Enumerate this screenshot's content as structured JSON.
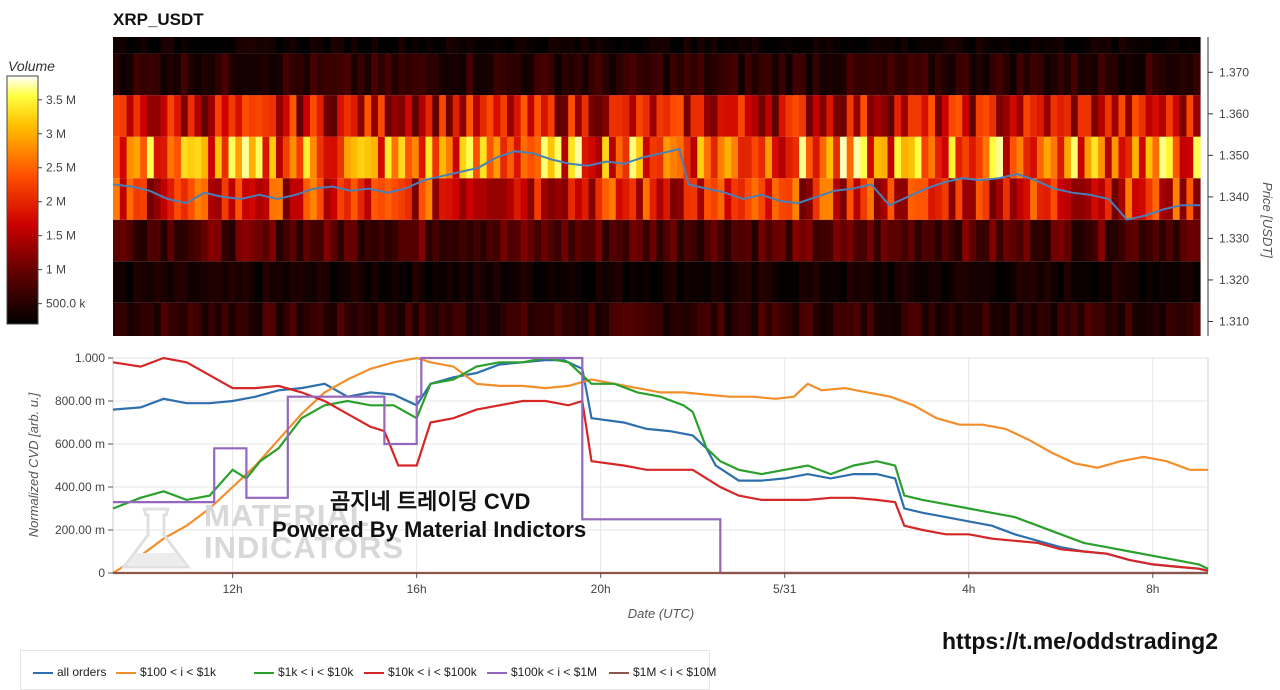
{
  "chart_title": "XRP_USDT",
  "colorbar": {
    "title": "Volume",
    "ticks": [
      "3.5 M",
      "3 M",
      "2.5 M",
      "2 M",
      "1.5 M",
      "1 M",
      "500.0 k"
    ],
    "tick_values": [
      3.5,
      3.0,
      2.5,
      2.0,
      1.5,
      1.0,
      0.5
    ],
    "range_m": [
      0.2,
      3.85
    ]
  },
  "overlay_text": {
    "line1": "곰지네 트레이딩 CVD",
    "line2": "Powered By Material Indictors"
  },
  "logo": {
    "text_line1": "MATERIAL",
    "text_line2": "INDICATORS",
    "icon": "flask-logo-icon"
  },
  "url_text": "https://t.me/oddstrading2",
  "chart_data": [
    {
      "type": "heatmap",
      "title": "XRP_USDT",
      "ylabel": "Price [USDT]",
      "yticks": [
        "1.370",
        "1.360",
        "1.350",
        "1.340",
        "1.330",
        "1.320",
        "1.310"
      ],
      "ytick_values": [
        1.37,
        1.36,
        1.35,
        1.34,
        1.33,
        1.32,
        1.31
      ],
      "ylim": [
        1.3065,
        1.3785
      ],
      "price_bands": [
        {
          "low": 1.3065,
          "high": 1.3145,
          "level_m": 0.6
        },
        {
          "low": 1.3145,
          "high": 1.3245,
          "level_m": 0.35
        },
        {
          "low": 1.3245,
          "high": 1.3345,
          "level_m": 0.85
        },
        {
          "low": 1.3345,
          "high": 1.3445,
          "level_m": 1.9
        },
        {
          "low": 1.3445,
          "high": 1.3545,
          "level_m": 2.6
        },
        {
          "low": 1.3545,
          "high": 1.3645,
          "level_m": 1.7
        },
        {
          "low": 1.3645,
          "high": 1.3745,
          "level_m": 0.55
        },
        {
          "low": 1.3745,
          "high": 1.3785,
          "level_m": 0.3
        }
      ],
      "price_line": {
        "color": "#4a7fb8",
        "x_hours": [
          9.4,
          9.8,
          10.2,
          10.6,
          11.0,
          11.4,
          11.8,
          12.2,
          12.6,
          13.0,
          13.4,
          13.8,
          14.2,
          14.6,
          15.0,
          15.4,
          15.8,
          16.2,
          16.6,
          17.0,
          17.4,
          17.8,
          18.2,
          18.6,
          19.0,
          19.4,
          19.8,
          20.2,
          20.6,
          21.0,
          21.4,
          21.8,
          22.0,
          22.4,
          22.8,
          23.2,
          23.6,
          24.0,
          24.4,
          24.8,
          25.2,
          25.6,
          26.0,
          26.4,
          26.8,
          27.2,
          27.6,
          28.0,
          28.4,
          28.8,
          29.2,
          29.6,
          30.0,
          30.4,
          30.8,
          31.2,
          31.6,
          32.0,
          32.4,
          32.8,
          33.2
        ],
        "price": [
          1.343,
          1.3425,
          1.3415,
          1.3395,
          1.3385,
          1.341,
          1.34,
          1.3395,
          1.3405,
          1.3395,
          1.3405,
          1.342,
          1.3425,
          1.3415,
          1.342,
          1.341,
          1.342,
          1.344,
          1.345,
          1.346,
          1.347,
          1.3495,
          1.351,
          1.3505,
          1.349,
          1.348,
          1.3475,
          1.3485,
          1.348,
          1.3495,
          1.3505,
          1.3515,
          1.343,
          1.342,
          1.341,
          1.3395,
          1.3405,
          1.339,
          1.3385,
          1.34,
          1.3415,
          1.342,
          1.343,
          1.338,
          1.34,
          1.342,
          1.3435,
          1.3445,
          1.344,
          1.3445,
          1.3455,
          1.344,
          1.342,
          1.341,
          1.3405,
          1.3395,
          1.3345,
          1.3355,
          1.337,
          1.338,
          1.338
        ]
      }
    },
    {
      "type": "line",
      "xlabel": "Date (UTC)",
      "ylabel": "Normalized CVD [arb. u.]",
      "xticks": [
        "12h",
        "16h",
        "20h",
        "5/31",
        "4h",
        "8h"
      ],
      "xtick_hours": [
        12,
        16,
        20,
        24,
        28,
        32
      ],
      "xlim_hours": [
        9.4,
        33.2
      ],
      "yticks": [
        "1.000",
        "800.00 m",
        "600.00 m",
        "400.00 m",
        "200.00 m",
        "0"
      ],
      "ytick_values": [
        1.0,
        0.8,
        0.6,
        0.4,
        0.2,
        0
      ],
      "ylim": [
        0,
        1.0
      ],
      "grid": true,
      "legend_position": "bottom",
      "series": [
        {
          "name": "all orders",
          "color": "#2e6fad",
          "x": [
            9.4,
            10.0,
            10.5,
            11.0,
            11.5,
            12.0,
            12.5,
            13.0,
            13.5,
            14.0,
            14.5,
            15.0,
            15.5,
            16.0,
            16.3,
            16.8,
            17.3,
            17.8,
            18.3,
            18.8,
            19.2,
            19.6,
            19.8,
            20.5,
            21.0,
            21.5,
            22.0,
            22.3,
            22.5,
            23.0,
            23.5,
            24.0,
            24.5,
            25.0,
            25.5,
            26.0,
            26.4,
            26.6,
            27.0,
            27.5,
            28.0,
            28.5,
            29.0,
            29.5,
            30.0,
            30.5,
            31.0,
            31.5,
            32.0,
            32.5,
            33.0,
            33.2
          ],
          "y": [
            0.76,
            0.77,
            0.81,
            0.79,
            0.79,
            0.8,
            0.82,
            0.85,
            0.86,
            0.88,
            0.82,
            0.84,
            0.83,
            0.78,
            0.88,
            0.91,
            0.93,
            0.97,
            0.98,
            0.99,
            0.99,
            0.95,
            0.72,
            0.7,
            0.67,
            0.66,
            0.64,
            0.58,
            0.5,
            0.43,
            0.43,
            0.44,
            0.46,
            0.44,
            0.46,
            0.46,
            0.44,
            0.3,
            0.28,
            0.26,
            0.24,
            0.22,
            0.18,
            0.15,
            0.12,
            0.1,
            0.09,
            0.06,
            0.04,
            0.03,
            0.02,
            0.01
          ]
        },
        {
          "name": "$100 < i < $1k",
          "color": "#f28e2b",
          "x": [
            9.4,
            10.0,
            10.5,
            11.0,
            11.5,
            12.0,
            12.5,
            13.0,
            13.5,
            14.0,
            14.5,
            15.0,
            15.5,
            16.0,
            16.3,
            16.8,
            17.3,
            17.8,
            18.3,
            18.8,
            19.3,
            19.8,
            20.3,
            20.8,
            21.3,
            21.8,
            22.3,
            22.8,
            23.3,
            23.8,
            24.2,
            24.5,
            24.8,
            25.3,
            25.8,
            26.3,
            26.8,
            27.3,
            27.8,
            28.3,
            28.8,
            29.3,
            29.8,
            30.3,
            30.8,
            31.3,
            31.8,
            32.3,
            32.8,
            33.2
          ],
          "y": [
            0.0,
            0.08,
            0.16,
            0.22,
            0.3,
            0.4,
            0.5,
            0.62,
            0.74,
            0.84,
            0.9,
            0.95,
            0.98,
            1.0,
            0.98,
            0.96,
            0.88,
            0.87,
            0.87,
            0.86,
            0.87,
            0.9,
            0.88,
            0.86,
            0.84,
            0.84,
            0.83,
            0.82,
            0.82,
            0.81,
            0.82,
            0.88,
            0.85,
            0.86,
            0.84,
            0.82,
            0.78,
            0.72,
            0.69,
            0.69,
            0.67,
            0.62,
            0.56,
            0.51,
            0.49,
            0.52,
            0.54,
            0.52,
            0.48,
            0.48
          ]
        },
        {
          "name": "$1k < i < $10k",
          "color": "#2ca02c",
          "x": [
            9.4,
            10.0,
            10.5,
            11.0,
            11.5,
            12.0,
            12.3,
            12.6,
            13.0,
            13.5,
            14.0,
            14.5,
            15.0,
            15.5,
            16.0,
            16.3,
            16.8,
            17.3,
            17.8,
            18.3,
            18.8,
            19.3,
            19.8,
            20.3,
            20.8,
            21.3,
            21.8,
            22.0,
            22.3,
            22.6,
            23.0,
            23.5,
            24.0,
            24.5,
            25.0,
            25.5,
            26.0,
            26.4,
            26.6,
            27.0,
            27.5,
            28.0,
            28.5,
            29.0,
            29.5,
            30.0,
            30.5,
            31.0,
            31.5,
            32.0,
            32.5,
            33.0,
            33.2
          ],
          "y": [
            0.3,
            0.35,
            0.38,
            0.34,
            0.36,
            0.48,
            0.44,
            0.52,
            0.58,
            0.72,
            0.78,
            0.8,
            0.78,
            0.78,
            0.72,
            0.88,
            0.9,
            0.96,
            0.98,
            0.98,
            1.0,
            0.98,
            0.88,
            0.88,
            0.84,
            0.82,
            0.78,
            0.75,
            0.58,
            0.52,
            0.48,
            0.46,
            0.48,
            0.5,
            0.46,
            0.5,
            0.52,
            0.5,
            0.36,
            0.34,
            0.32,
            0.3,
            0.28,
            0.26,
            0.22,
            0.18,
            0.14,
            0.12,
            0.1,
            0.08,
            0.06,
            0.04,
            0.02
          ]
        },
        {
          "name": "$10k < i < $100k",
          "color": "#d62728",
          "x": [
            9.4,
            10.0,
            10.5,
            11.0,
            11.5,
            12.0,
            12.5,
            13.0,
            13.5,
            14.0,
            14.5,
            15.0,
            15.3,
            15.6,
            16.0,
            16.3,
            16.8,
            17.3,
            17.8,
            18.3,
            18.8,
            19.3,
            19.6,
            19.8,
            20.5,
            21.0,
            21.5,
            22.0,
            22.3,
            22.6,
            23.0,
            23.5,
            24.0,
            24.5,
            25.0,
            25.5,
            26.0,
            26.4,
            26.6,
            27.0,
            27.5,
            28.0,
            28.5,
            29.0,
            29.5,
            30.0,
            30.5,
            31.0,
            31.5,
            32.0,
            32.5,
            33.0,
            33.2
          ],
          "y": [
            0.98,
            0.96,
            1.0,
            0.98,
            0.92,
            0.86,
            0.86,
            0.87,
            0.84,
            0.8,
            0.74,
            0.68,
            0.66,
            0.5,
            0.5,
            0.7,
            0.72,
            0.76,
            0.78,
            0.8,
            0.8,
            0.78,
            0.8,
            0.52,
            0.5,
            0.48,
            0.48,
            0.48,
            0.44,
            0.4,
            0.36,
            0.34,
            0.34,
            0.34,
            0.35,
            0.35,
            0.34,
            0.33,
            0.22,
            0.2,
            0.18,
            0.18,
            0.16,
            0.15,
            0.14,
            0.11,
            0.1,
            0.09,
            0.06,
            0.04,
            0.03,
            0.02,
            0.01
          ]
        },
        {
          "name": "$100k < i < $1M",
          "color": "#9467bd",
          "x": [
            9.4,
            11.6,
            11.6,
            12.3,
            12.3,
            13.2,
            13.2,
            15.3,
            15.3,
            16.0,
            16.0,
            16.1,
            16.1,
            19.6,
            19.6,
            22.6,
            22.6,
            33.2
          ],
          "y": [
            0.33,
            0.33,
            0.58,
            0.58,
            0.35,
            0.35,
            0.82,
            0.82,
            0.6,
            0.6,
            0.82,
            0.82,
            1.0,
            1.0,
            0.25,
            0.25,
            0.0,
            0.0
          ]
        },
        {
          "name": "$1M < i < $10M",
          "color": "#8c564b",
          "x": [
            9.4,
            33.2
          ],
          "y": [
            0.0,
            0.0
          ]
        }
      ]
    }
  ]
}
